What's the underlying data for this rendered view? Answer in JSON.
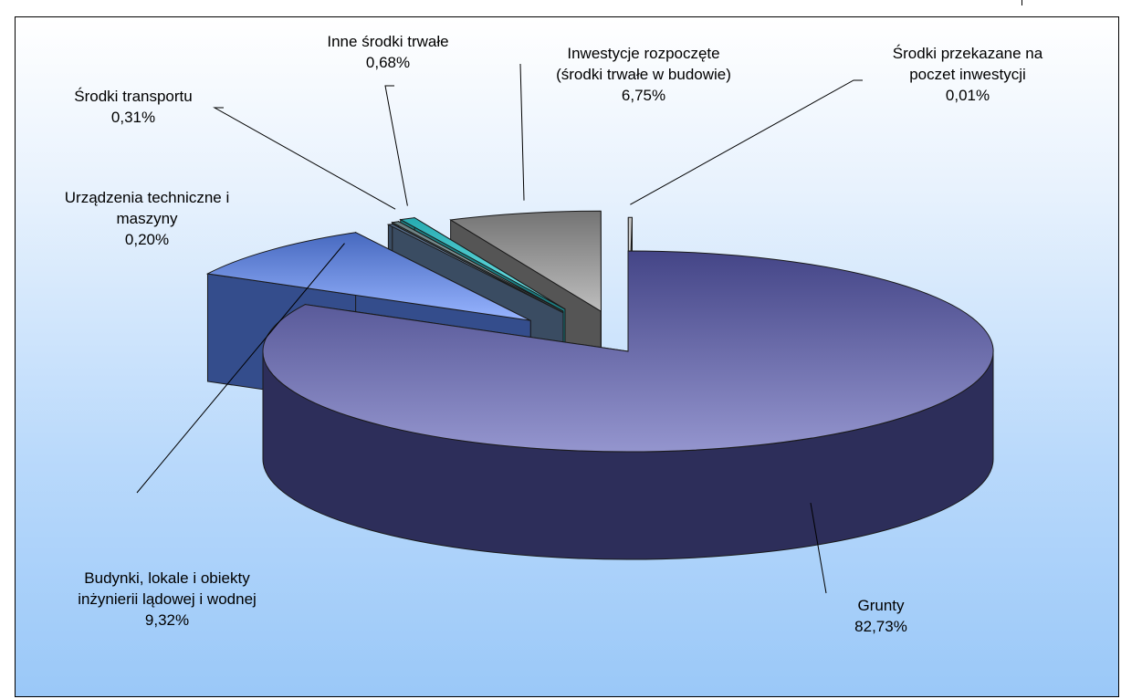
{
  "chart_data": {
    "type": "pie",
    "title": "",
    "unit": "%",
    "slices": [
      {
        "label_lines": [
          "Grunty"
        ],
        "value": 82.73,
        "value_text": "82,73%",
        "color": "#5a5cb4"
      },
      {
        "label_lines": [
          "Budynki, lokale i obiekty",
          "inżynierii lądowej i wodnej"
        ],
        "value": 9.32,
        "value_text": "9,32%",
        "color": "#5f8cff"
      },
      {
        "label_lines": [
          "Urządzenia techniczne i",
          "maszyny"
        ],
        "value": 0.2,
        "value_text": "0,20%",
        "color": "#6a8ab2"
      },
      {
        "label_lines": [
          "Środki transportu"
        ],
        "value": 0.31,
        "value_text": "0,31%",
        "color": "#8aa5a8"
      },
      {
        "label_lines": [
          "Inne środki trwałe"
        ],
        "value": 0.68,
        "value_text": "0,68%",
        "color": "#33e3ea"
      },
      {
        "label_lines": [
          "Inwestycje rozpoczęte",
          "(środki trwałe w budowie)"
        ],
        "value": 6.75,
        "value_text": "6,75%",
        "color": "#9a9a9a"
      },
      {
        "label_lines": [
          "Środki przekazane na",
          "poczet inwestycji"
        ],
        "value": 0.01,
        "value_text": "0,01%",
        "color": "#ffffff"
      }
    ],
    "legend": "none",
    "style": "3d-exploded"
  }
}
